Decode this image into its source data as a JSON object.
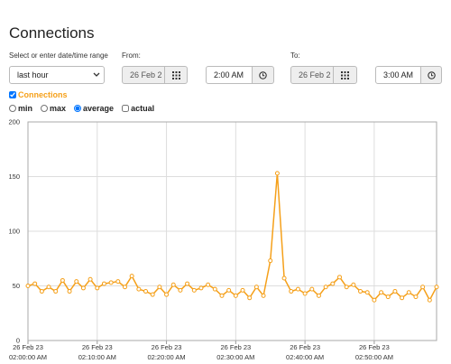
{
  "header": {
    "title": "Connections"
  },
  "form": {
    "range_label": "Select or enter date/time range",
    "range_value": "last hour",
    "from_label": "From:",
    "from_date": "26 Feb 2",
    "from_time": "2:00 AM",
    "to_label": "To:",
    "to_date": "26 Feb 2",
    "to_time": "3:00 AM",
    "options": [
      {
        "label": "min",
        "kind": "radio",
        "checked": false
      },
      {
        "label": "max",
        "kind": "radio",
        "checked": false
      },
      {
        "label": "average",
        "kind": "radio",
        "checked": true
      },
      {
        "label": "actual",
        "kind": "checkbox",
        "checked": false
      }
    ]
  },
  "chart_data": {
    "type": "line",
    "grid": true,
    "markers": true,
    "x": [
      0,
      1,
      2,
      3,
      4,
      5,
      6,
      7,
      8,
      9,
      10,
      11,
      12,
      13,
      14,
      15,
      16,
      17,
      18,
      19,
      20,
      21,
      22,
      23,
      24,
      25,
      26,
      27,
      28,
      29,
      30,
      31,
      32,
      33,
      34,
      35,
      36,
      37,
      38,
      39,
      40,
      41,
      42,
      43,
      44,
      45,
      46,
      47,
      48,
      49,
      50,
      51,
      52,
      53,
      54,
      55,
      56,
      57,
      58,
      59
    ],
    "series": [
      {
        "name": "Connections",
        "color": "#f5a01a",
        "checked": true,
        "values": [
          50,
          52,
          45,
          49,
          45,
          55,
          45,
          54,
          48,
          56,
          48,
          52,
          53,
          54,
          49,
          59,
          47,
          45,
          42,
          49,
          42,
          51,
          46,
          52,
          46,
          48,
          51,
          47,
          41,
          46,
          41,
          46,
          39,
          49,
          41,
          73,
          153,
          57,
          45,
          47,
          43,
          47,
          41,
          49,
          52,
          58,
          49,
          51,
          45,
          44,
          37,
          44,
          40,
          45,
          39,
          44,
          40,
          49,
          37,
          49
        ]
      }
    ],
    "xlim": [
      0,
      59
    ],
    "ylim": [
      0,
      200
    ],
    "yticks": [
      0,
      50,
      100,
      150,
      200
    ],
    "xticks": [
      {
        "value": 0,
        "label": [
          "26 Feb 23",
          "02:00:00 AM"
        ]
      },
      {
        "value": 10,
        "label": [
          "26 Feb 23",
          "02:10:00 AM"
        ]
      },
      {
        "value": 20,
        "label": [
          "26 Feb 23",
          "02:20:00 AM"
        ]
      },
      {
        "value": 30,
        "label": [
          "26 Feb 23",
          "02:30:00 AM"
        ]
      },
      {
        "value": 40,
        "label": [
          "26 Feb 23",
          "02:40:00 AM"
        ]
      },
      {
        "value": 50,
        "label": [
          "26 Feb 23",
          "02:50:00 AM"
        ]
      }
    ]
  }
}
